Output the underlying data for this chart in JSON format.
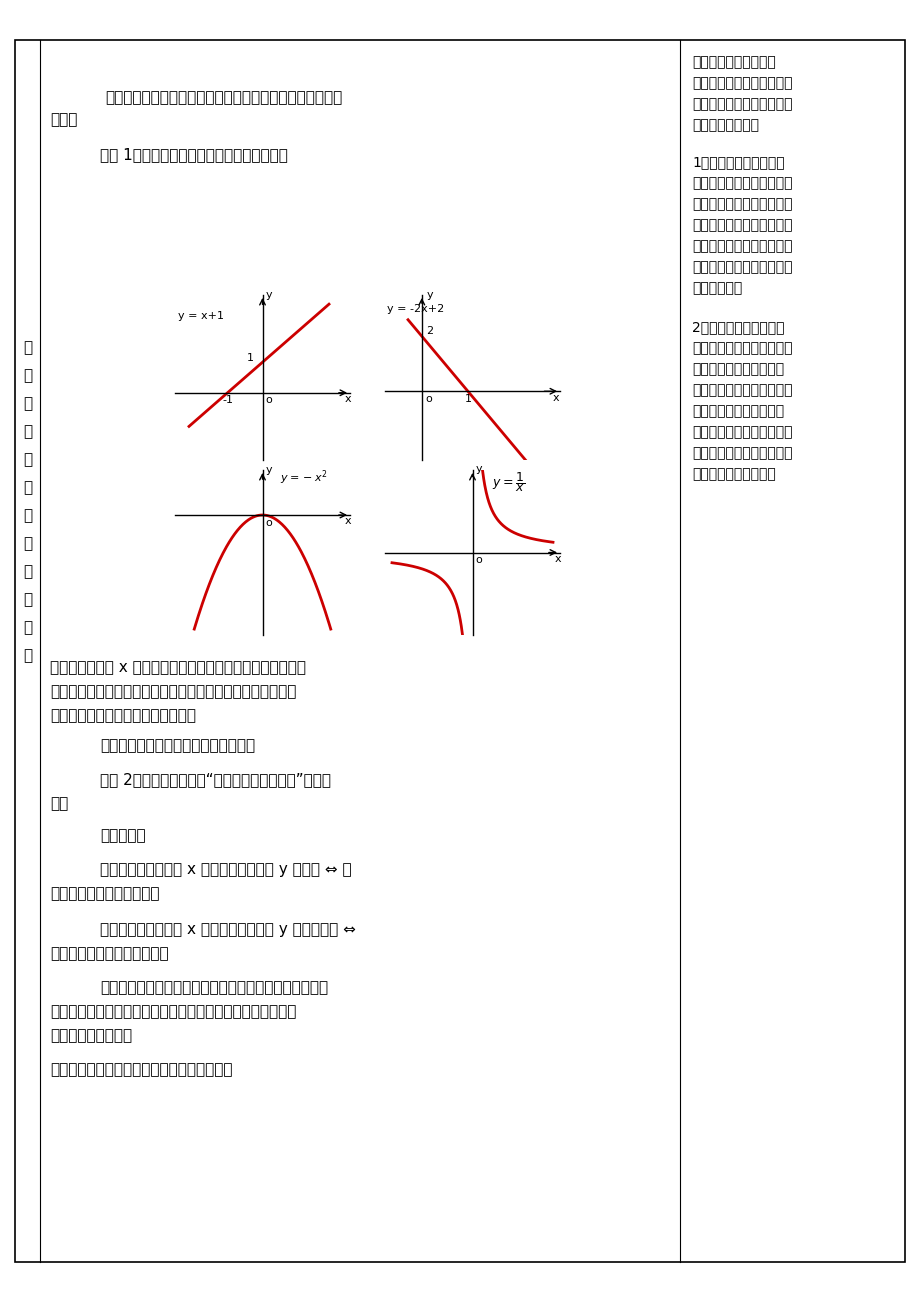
{
  "bg_color": "#ffffff",
  "border_color": "#000000",
  "text_color": "#000000",
  "red_curve_color": "#cc0000",
  "page_width": 9.2,
  "page_height": 13.02
}
